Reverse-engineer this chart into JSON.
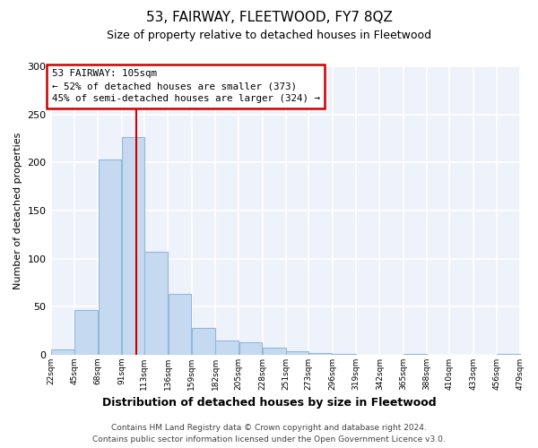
{
  "title": "53, FAIRWAY, FLEETWOOD, FY7 8QZ",
  "subtitle": "Size of property relative to detached houses in Fleetwood",
  "xlabel": "Distribution of detached houses by size in Fleetwood",
  "ylabel": "Number of detached properties",
  "bar_color": "#c5d9f0",
  "bar_edge_color": "#94b8d9",
  "figure_bg": "#ffffff",
  "axes_bg": "#eef2fa",
  "grid_color": "#ffffff",
  "annotation_box_color": "#cc0000",
  "vline_color": "#cc0000",
  "annotation_line1": "53 FAIRWAY: 105sqm",
  "annotation_line2": "← 52% of detached houses are smaller (373)",
  "annotation_line3": "45% of semi-detached houses are larger (324) →",
  "vline_x": 105,
  "ylim": [
    0,
    300
  ],
  "yticks": [
    0,
    50,
    100,
    150,
    200,
    250,
    300
  ],
  "bin_edges": [
    22,
    45,
    68,
    91,
    113,
    136,
    159,
    182,
    205,
    228,
    251,
    273,
    296,
    319,
    342,
    365,
    388,
    410,
    433,
    456,
    479
  ],
  "bar_heights": [
    5,
    46,
    203,
    226,
    107,
    63,
    28,
    15,
    13,
    7,
    4,
    2,
    1,
    0,
    0,
    1,
    0,
    0,
    0,
    1
  ],
  "footer_line1": "Contains HM Land Registry data © Crown copyright and database right 2024.",
  "footer_line2": "Contains public sector information licensed under the Open Government Licence v3.0.",
  "tick_labels": [
    "22sqm",
    "45sqm",
    "68sqm",
    "91sqm",
    "113sqm",
    "136sqm",
    "159sqm",
    "182sqm",
    "205sqm",
    "228sqm",
    "251sqm",
    "273sqm",
    "296sqm",
    "319sqm",
    "342sqm",
    "365sqm",
    "388sqm",
    "410sqm",
    "433sqm",
    "456sqm",
    "479sqm"
  ]
}
